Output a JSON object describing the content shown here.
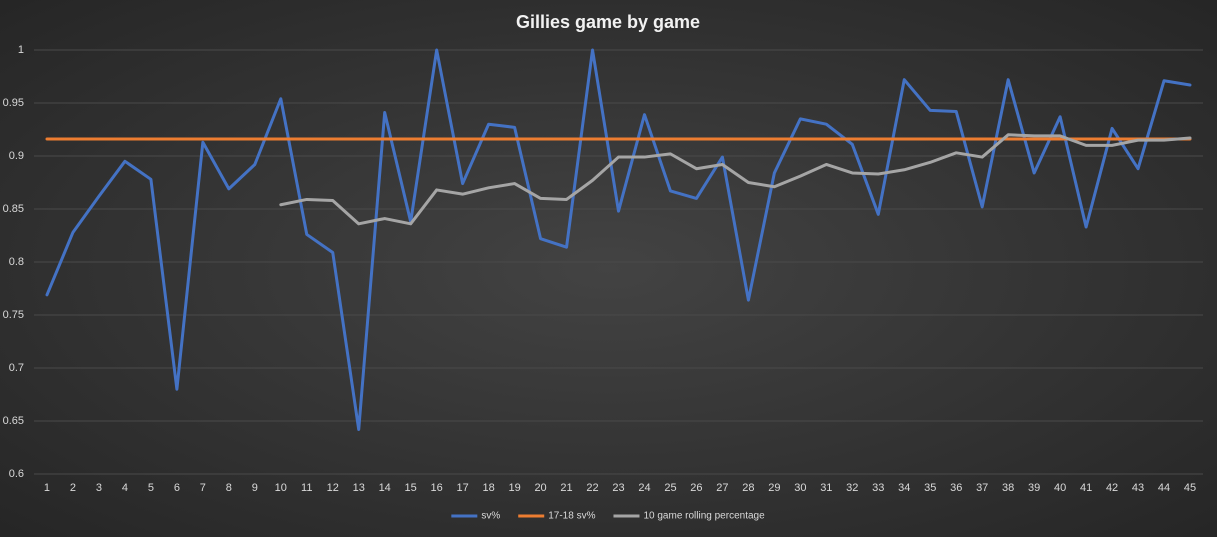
{
  "chart_data": {
    "type": "line",
    "title": "Gillies game by game",
    "categories": [
      "1",
      "2",
      "3",
      "4",
      "5",
      "6",
      "7",
      "8",
      "9",
      "10",
      "11",
      "12",
      "13",
      "14",
      "15",
      "16",
      "17",
      "18",
      "19",
      "20",
      "21",
      "22",
      "23",
      "24",
      "25",
      "26",
      "27",
      "28",
      "29",
      "30",
      "31",
      "32",
      "33",
      "34",
      "35",
      "36",
      "37",
      "38",
      "39",
      "40",
      "41",
      "42",
      "43",
      "44",
      "45"
    ],
    "series": [
      {
        "name": "sv%",
        "color": "#4472c4",
        "values": [
          0.769,
          0.828,
          0.862,
          0.895,
          0.878,
          0.68,
          0.913,
          0.869,
          0.892,
          0.954,
          0.826,
          0.809,
          0.642,
          0.941,
          0.838,
          1.0,
          0.874,
          0.93,
          0.927,
          0.822,
          0.814,
          1.0,
          0.848,
          0.939,
          0.867,
          0.86,
          0.899,
          0.764,
          0.884,
          0.935,
          0.93,
          0.911,
          0.845,
          0.972,
          0.943,
          0.942,
          0.852,
          0.972,
          0.884,
          0.937,
          0.833,
          0.926,
          0.888,
          0.971,
          0.967
        ]
      },
      {
        "name": "17-18 sv%",
        "color": "#ed7d31",
        "values": [
          0.916,
          0.916,
          0.916,
          0.916,
          0.916,
          0.916,
          0.916,
          0.916,
          0.916,
          0.916,
          0.916,
          0.916,
          0.916,
          0.916,
          0.916,
          0.916,
          0.916,
          0.916,
          0.916,
          0.916,
          0.916,
          0.916,
          0.916,
          0.916,
          0.916,
          0.916,
          0.916,
          0.916,
          0.916,
          0.916,
          0.916,
          0.916,
          0.916,
          0.916,
          0.916,
          0.916,
          0.916,
          0.916,
          0.916,
          0.916,
          0.916,
          0.916,
          0.916,
          0.916,
          0.916
        ]
      },
      {
        "name": "10 game rolling percentage",
        "color": "#a5a5a5",
        "values": [
          null,
          null,
          null,
          null,
          null,
          null,
          null,
          null,
          null,
          0.854,
          0.859,
          0.858,
          0.836,
          0.841,
          0.836,
          0.868,
          0.864,
          0.87,
          0.874,
          0.86,
          0.859,
          0.877,
          0.899,
          0.899,
          0.902,
          0.888,
          0.892,
          0.875,
          0.871,
          0.881,
          0.892,
          0.884,
          0.883,
          0.887,
          0.894,
          0.903,
          0.899,
          0.92,
          0.919,
          0.919,
          0.91,
          0.91,
          0.915,
          0.915,
          0.917
        ]
      }
    ],
    "ylim": [
      0.6,
      1
    ],
    "yticks": [
      0.6,
      0.65,
      0.7,
      0.75,
      0.8,
      0.85,
      0.9,
      0.95,
      1
    ],
    "grid": true,
    "legend": "bottom"
  }
}
